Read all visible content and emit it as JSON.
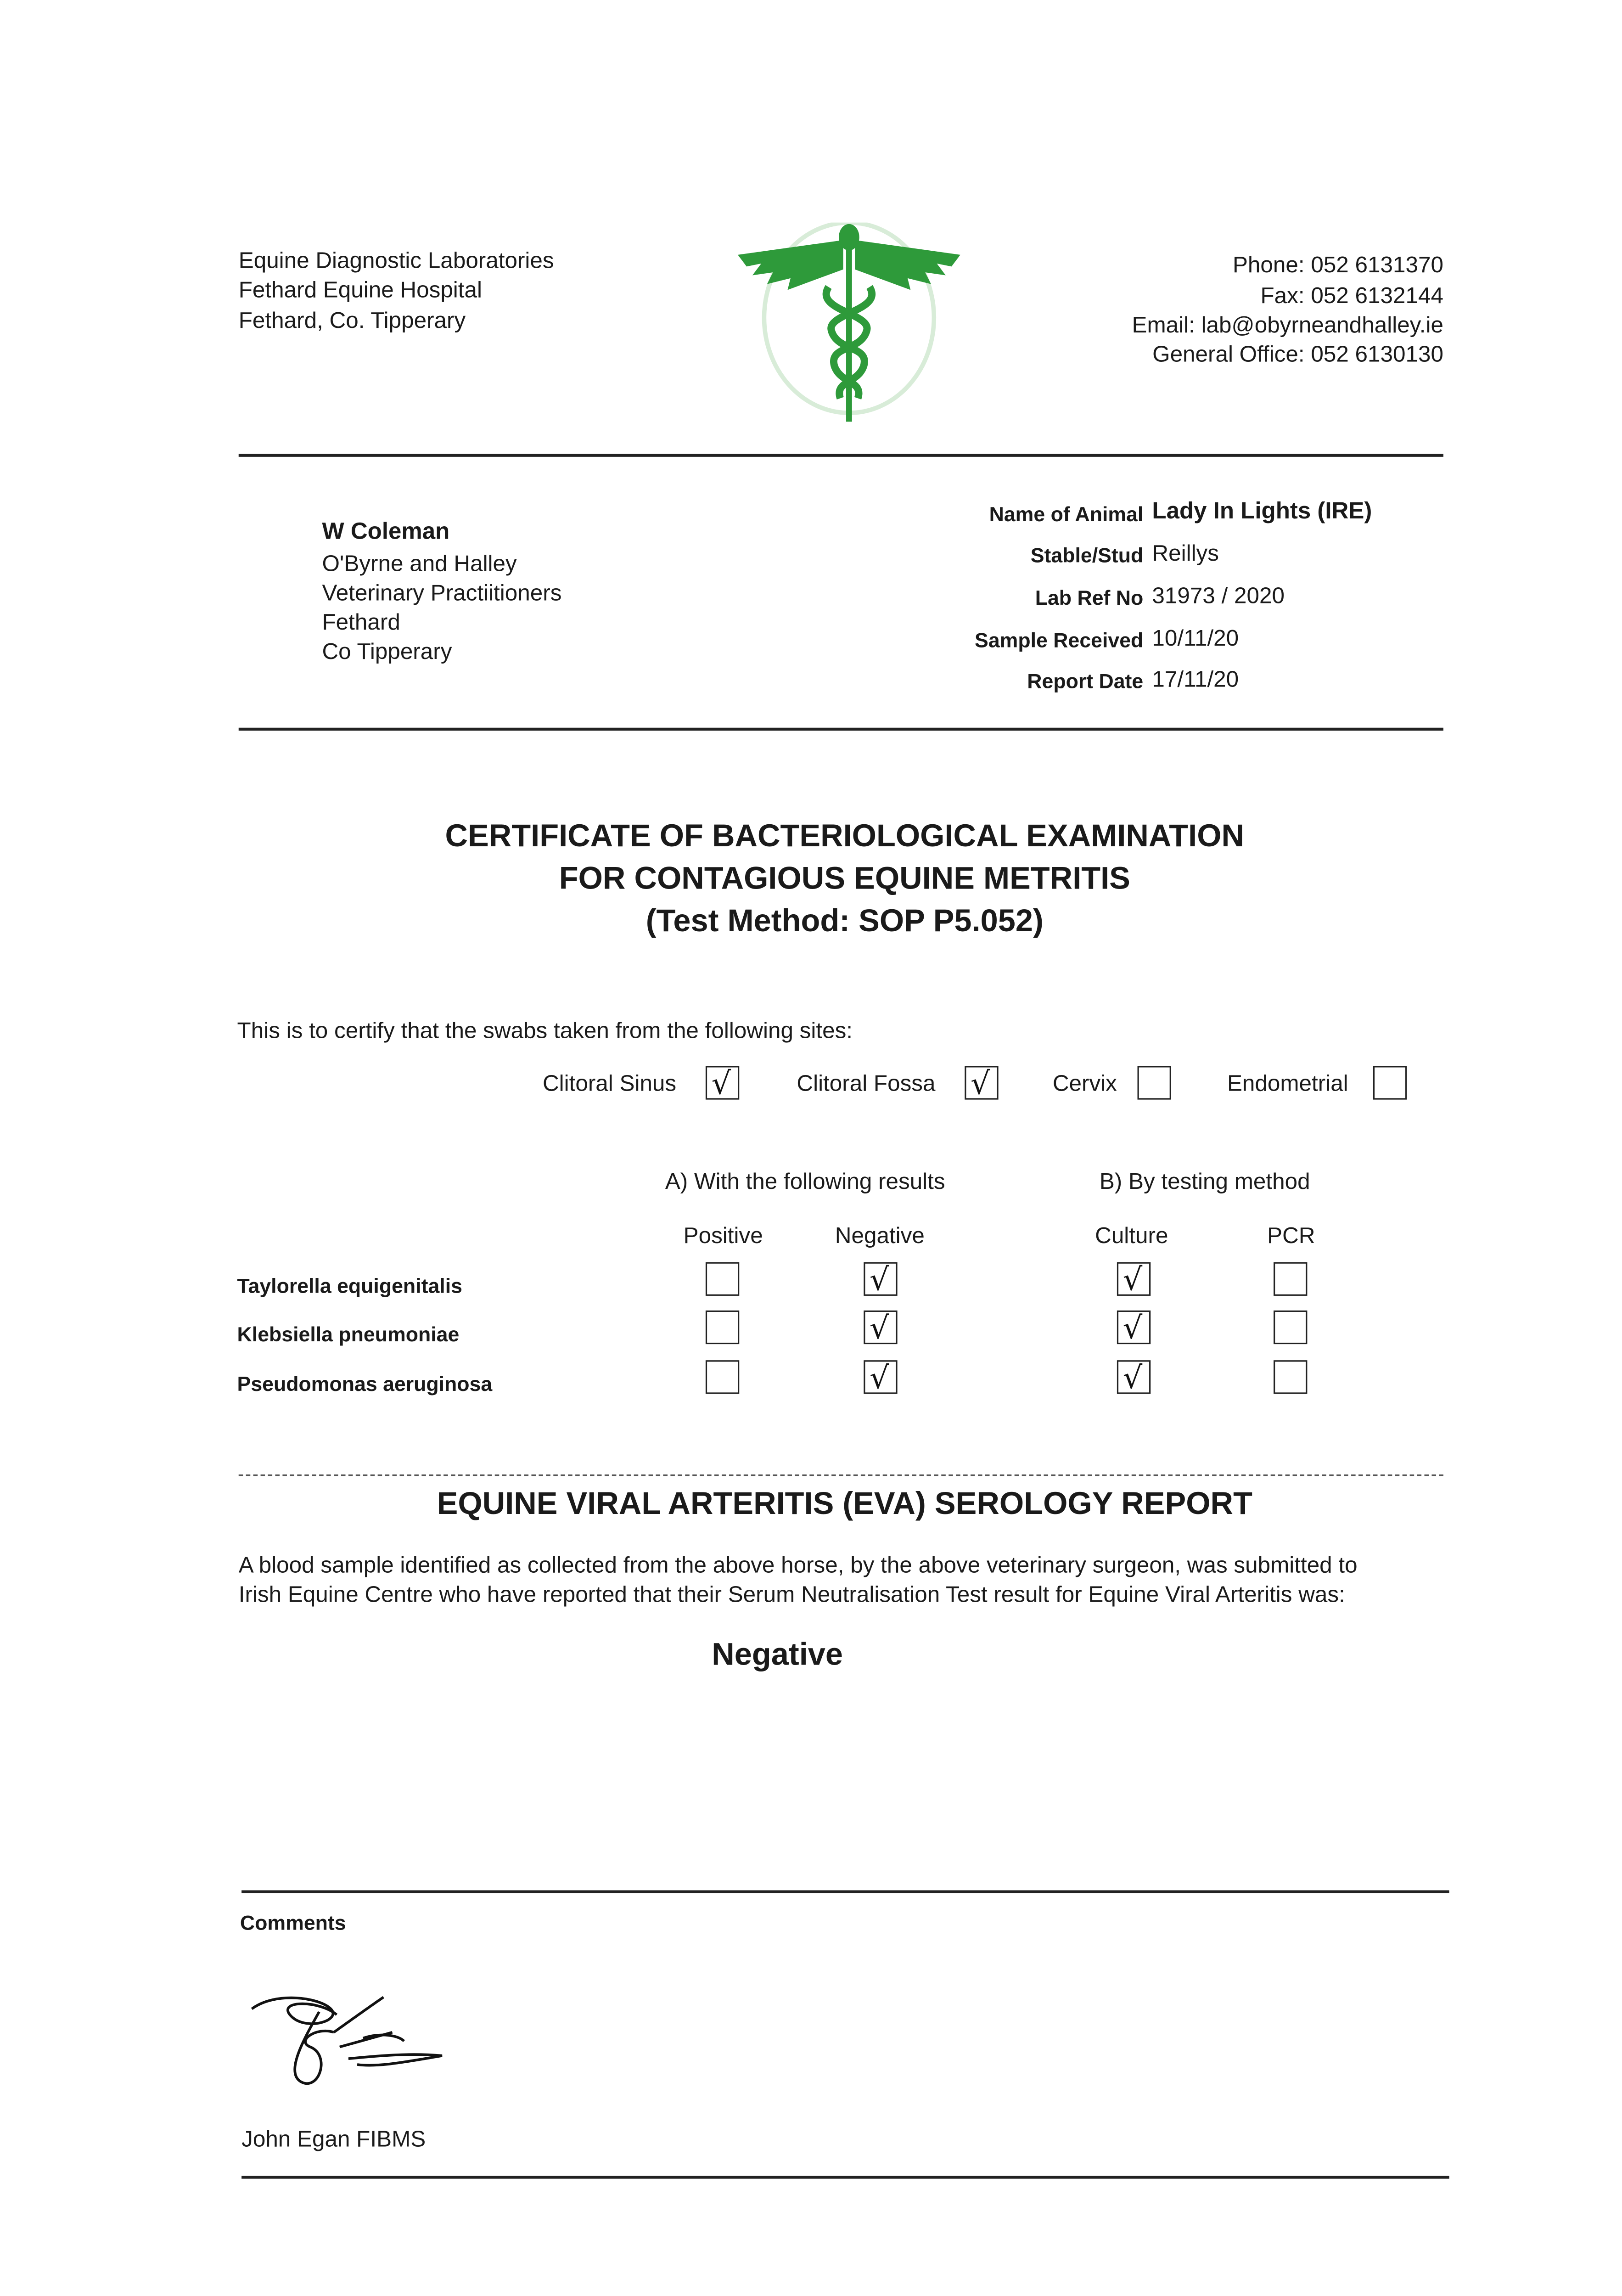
{
  "header": {
    "address": [
      "Equine Diagnostic Laboratories",
      "Fethard Equine Hospital",
      "Fethard, Co. Tipperary"
    ],
    "contacts": [
      "Phone: 052 6131370",
      "Fax: 052 6132144",
      "Email: lab@obyrneandhalley.ie",
      "General Office: 052 6130130"
    ],
    "logo_icon": "caduceus-icon",
    "logo_color": "#2e9a3a"
  },
  "recipient": {
    "name": "W Coleman",
    "lines": [
      "O'Byrne and Halley",
      "Veterinary Practiitioners",
      "Fethard",
      "Co Tipperary"
    ]
  },
  "details": [
    {
      "label": "Name of Animal",
      "value": "Lady In Lights (IRE)"
    },
    {
      "label": "Stable/Stud",
      "value": "Reillys"
    },
    {
      "label": "Lab Ref No",
      "value": "31973 / 2020"
    },
    {
      "label": "Sample Received",
      "value": "10/11/20"
    },
    {
      "label": "Report Date",
      "value": "17/11/20"
    }
  ],
  "certificate": {
    "title_lines": [
      "CERTIFICATE OF BACTERIOLOGICAL EXAMINATION",
      "FOR CONTAGIOUS EQUINE METRITIS",
      "(Test Method: SOP P5.052)"
    ],
    "intro": "This is to certify that the swabs taken from the following sites:",
    "sites": [
      {
        "label": "Clitoral Sinus",
        "checked": true
      },
      {
        "label": "Clitoral Fossa",
        "checked": true
      },
      {
        "label": "Cervix",
        "checked": false
      },
      {
        "label": "Endometrial",
        "checked": false
      }
    ],
    "group_a": "A) With the following results",
    "group_b": "B) By testing method",
    "columns": [
      "Positive",
      "Negative",
      "Culture",
      "PCR"
    ],
    "rows": [
      {
        "organism": "Taylorella equigenitalis",
        "checks": [
          false,
          true,
          true,
          false
        ]
      },
      {
        "organism": "Klebsiella pneumoniae",
        "checks": [
          false,
          true,
          true,
          false
        ]
      },
      {
        "organism": "Pseudomonas aeruginosa",
        "checks": [
          false,
          true,
          true,
          false
        ]
      }
    ]
  },
  "eva": {
    "title": "EQUINE VIRAL ARTERITIS (EVA) SEROLOGY REPORT",
    "paragraph_lines": [
      "A blood sample identified as collected from the above horse, by the above veterinary surgeon, was submitted to",
      "Irish Equine Centre who have reported that their Serum Neutralisation Test result for Equine Viral Arteritis was:"
    ],
    "result": "Negative"
  },
  "footer": {
    "comments_label": "Comments",
    "signatory": "John Egan FIBMS"
  }
}
